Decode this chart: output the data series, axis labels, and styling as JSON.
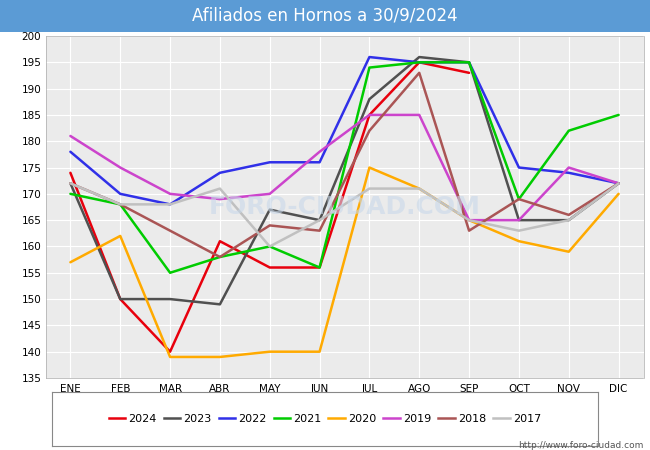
{
  "title": "Afiliados en Hornos a 30/9/2024",
  "ylim": [
    135,
    200
  ],
  "months": [
    "ENE",
    "FEB",
    "MAR",
    "ABR",
    "MAY",
    "JUN",
    "JUL",
    "AGO",
    "SEP",
    "OCT",
    "NOV",
    "DIC"
  ],
  "series": {
    "2024": {
      "color": "#e8000d",
      "values": [
        174,
        150,
        140,
        161,
        156,
        156,
        185,
        195,
        193,
        null,
        null,
        null
      ]
    },
    "2023": {
      "color": "#505050",
      "values": [
        172,
        150,
        150,
        149,
        167,
        165,
        188,
        196,
        195,
        165,
        165,
        172
      ]
    },
    "2022": {
      "color": "#3030e8",
      "values": [
        178,
        170,
        168,
        174,
        176,
        176,
        196,
        195,
        195,
        175,
        174,
        172
      ]
    },
    "2021": {
      "color": "#00cc00",
      "values": [
        170,
        168,
        155,
        158,
        160,
        156,
        194,
        195,
        195,
        169,
        182,
        185
      ]
    },
    "2020": {
      "color": "#ffaa00",
      "values": [
        157,
        162,
        139,
        139,
        140,
        140,
        175,
        171,
        165,
        161,
        159,
        170
      ]
    },
    "2019": {
      "color": "#cc44cc",
      "values": [
        181,
        175,
        170,
        169,
        170,
        178,
        185,
        185,
        165,
        165,
        175,
        172
      ]
    },
    "2018": {
      "color": "#aa5555",
      "values": [
        172,
        168,
        163,
        158,
        164,
        163,
        182,
        193,
        163,
        169,
        166,
        172
      ]
    },
    "2017": {
      "color": "#c0c0c0",
      "values": [
        172,
        168,
        168,
        171,
        160,
        165,
        171,
        171,
        165,
        163,
        165,
        172
      ]
    }
  },
  "background_color": "#ffffff",
  "plot_background": "#ebebeb",
  "title_bg_color": "#5b9bd5",
  "title_color": "#ffffff",
  "title_fontsize": 12,
  "watermark": "FORO-CIUDAD.COM",
  "url": "http://www.foro-ciudad.com",
  "legend_years": [
    "2024",
    "2023",
    "2022",
    "2021",
    "2020",
    "2019",
    "2018",
    "2017"
  ]
}
